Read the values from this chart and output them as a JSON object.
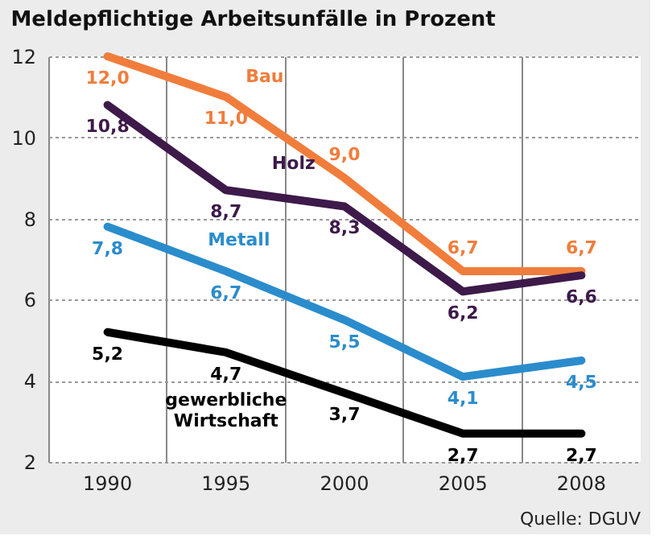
{
  "chart_data": {
    "type": "line",
    "title": "Meldepflichtige Arbeitsunfälle in Prozent",
    "categories": [
      "1990",
      "1995",
      "2000",
      "2005",
      "2008"
    ],
    "ylim": [
      2,
      12
    ],
    "yticks": [
      2,
      4,
      6,
      8,
      10,
      12
    ],
    "grid": true,
    "series": [
      {
        "name": "Bau",
        "color": "#f07d3c",
        "values": [
          12.0,
          11.0,
          9.0,
          6.7,
          6.7
        ],
        "value_labels": [
          "12,0",
          "11,0",
          "9,0",
          "6,7",
          "6,7"
        ]
      },
      {
        "name": "Holz",
        "color": "#3d1a4a",
        "values": [
          10.8,
          8.7,
          8.3,
          6.2,
          6.6
        ],
        "value_labels": [
          "10,8",
          "8,7",
          "8,3",
          "6,2",
          "6,6"
        ]
      },
      {
        "name": "Metall",
        "color": "#2b8ccc",
        "values": [
          7.8,
          6.7,
          5.5,
          4.1,
          4.5
        ],
        "value_labels": [
          "7,8",
          "6,7",
          "5,5",
          "4,1",
          "4,5"
        ]
      },
      {
        "name": "gewerbliche Wirtschaft",
        "color": "#000000",
        "values": [
          5.2,
          4.7,
          3.7,
          2.7,
          2.7
        ],
        "value_labels": [
          "5,2",
          "4,7",
          "3,7",
          "2,7",
          "2,7"
        ]
      }
    ],
    "annotations": [
      "Quelle: DGUV"
    ]
  }
}
